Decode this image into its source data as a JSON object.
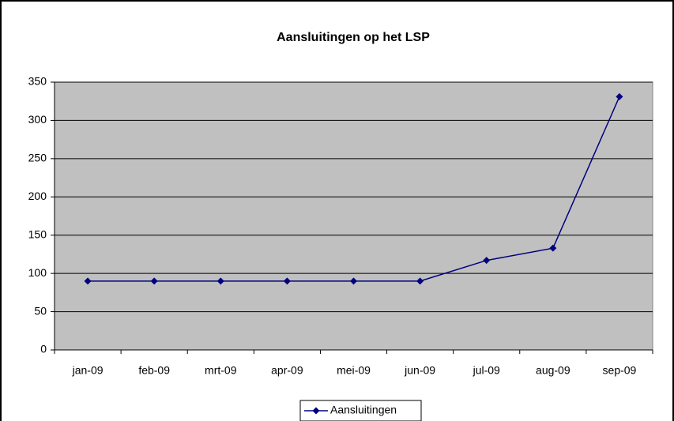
{
  "chart_data": {
    "type": "line",
    "title": "Aansluitingen op het LSP",
    "categories": [
      "jan-09",
      "feb-09",
      "mrt-09",
      "apr-09",
      "mei-09",
      "jun-09",
      "jul-09",
      "aug-09",
      "sep-09"
    ],
    "series": [
      {
        "name": "Aansluitingen",
        "color": "#000080",
        "values": [
          90,
          90,
          90,
          90,
          90,
          90,
          117,
          133,
          331
        ]
      }
    ],
    "ylim": [
      0,
      350
    ],
    "yticks": [
      0,
      50,
      100,
      150,
      200,
      250,
      300,
      350
    ],
    "grid": true,
    "legend": "bottom"
  }
}
